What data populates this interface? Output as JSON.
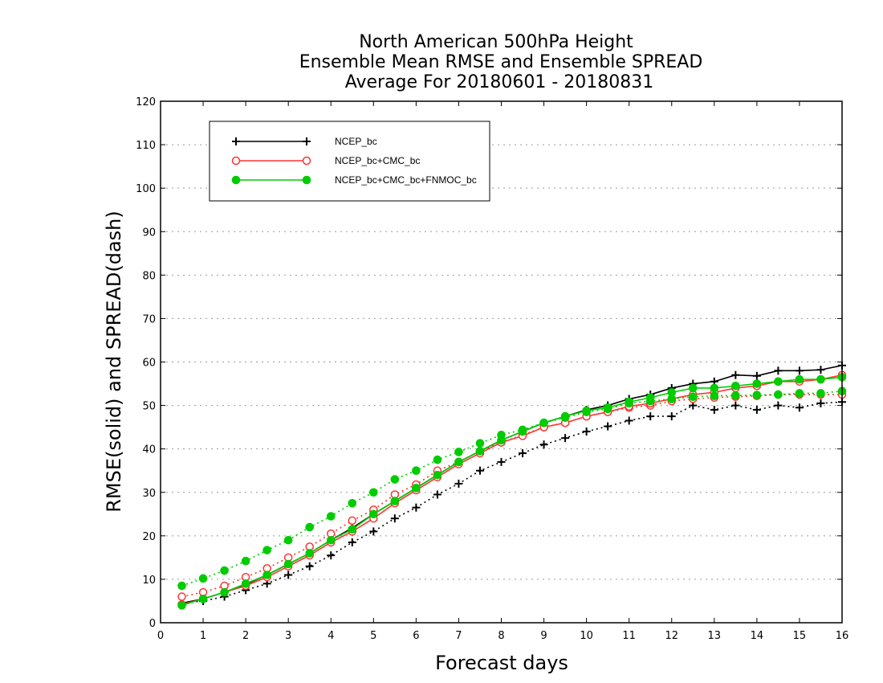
{
  "chart_data": {
    "type": "line",
    "title": [
      "North American 500hPa Height",
      "Ensemble Mean RMSE and Ensemble SPREAD",
      "Average For 20180601 - 20180831"
    ],
    "xlabel": "Forecast days",
    "ylabel": "RMSE(solid) and SPREAD(dash)",
    "xlim": [
      0,
      16
    ],
    "ylim": [
      0,
      120
    ],
    "xticks": [
      "0",
      "1",
      "2",
      "3",
      "4",
      "5",
      "6",
      "7",
      "8",
      "9",
      "10",
      "11",
      "12",
      "13",
      "14",
      "15",
      "16"
    ],
    "yticks": [
      "0",
      "10",
      "20",
      "30",
      "40",
      "50",
      "60",
      "70",
      "80",
      "90",
      "100",
      "110",
      "120"
    ],
    "grid": true,
    "legend_position": "top-left",
    "x": [
      0.5,
      1,
      1.5,
      2,
      2.5,
      3,
      3.5,
      4,
      4.5,
      5,
      5.5,
      6,
      6.5,
      7,
      7.5,
      8,
      8.5,
      9,
      9.5,
      10,
      10.5,
      11,
      11.5,
      12,
      12.5,
      13,
      13.5,
      14,
      14.5,
      15,
      15.5,
      16
    ],
    "series": [
      {
        "name": "NCEP_bc",
        "color": "#000000",
        "marker": "plus",
        "rmse": [
          4.5,
          5.5,
          7.0,
          8.8,
          11.0,
          13.5,
          16.0,
          19.0,
          21.8,
          25.0,
          28.0,
          31.0,
          34.0,
          37.0,
          39.5,
          42.0,
          44.0,
          46.0,
          47.5,
          49.0,
          50.0,
          51.5,
          52.5,
          54.0,
          55.0,
          55.5,
          57.0,
          56.8,
          58.0,
          58.0,
          58.2,
          59.2
        ],
        "spread": [
          4.5,
          5.0,
          6.0,
          7.5,
          9.0,
          11.0,
          13.0,
          15.5,
          18.5,
          21.0,
          24.0,
          26.5,
          29.5,
          32.0,
          35.0,
          37.0,
          39.0,
          41.0,
          42.5,
          44.0,
          45.2,
          46.5,
          47.5,
          47.5,
          50.0,
          49.0,
          50.0,
          49.0,
          50.0,
          49.5,
          50.5,
          50.8
        ]
      },
      {
        "name": "NCEP_bc+CMC_bc",
        "color": "#ff3333",
        "marker": "open-circle",
        "rmse": [
          4.2,
          5.5,
          7.0,
          8.5,
          10.5,
          13.0,
          15.5,
          18.5,
          21.0,
          24.0,
          27.5,
          30.5,
          33.5,
          36.5,
          39.0,
          41.5,
          43.0,
          45.0,
          46.0,
          47.5,
          48.5,
          49.8,
          50.5,
          51.5,
          52.5,
          53.0,
          54.0,
          54.5,
          55.5,
          55.5,
          56.0,
          57.0
        ],
        "spread": [
          6.0,
          7.0,
          8.5,
          10.5,
          12.5,
          15.0,
          17.5,
          20.5,
          23.5,
          26.0,
          29.5,
          31.8,
          35.0,
          37.0,
          39.5,
          41.5,
          43.2,
          45.0,
          46.0,
          47.5,
          48.5,
          49.5,
          50.0,
          51.0,
          51.5,
          51.8,
          52.0,
          52.2,
          52.5,
          52.5,
          52.5,
          52.5
        ]
      },
      {
        "name": "NCEP_bc+CMC_bc+FNMOC_bc",
        "color": "#00cc00",
        "marker": "filled-circle",
        "rmse": [
          4.0,
          5.5,
          7.0,
          9.0,
          11.0,
          13.5,
          16.0,
          19.0,
          21.5,
          25.0,
          28.0,
          31.0,
          34.0,
          37.0,
          39.5,
          42.0,
          44.0,
          46.0,
          47.5,
          48.8,
          49.5,
          50.8,
          51.8,
          53.0,
          54.0,
          54.0,
          54.5,
          55.0,
          55.5,
          56.0,
          56.0,
          56.5
        ],
        "spread": [
          8.5,
          10.2,
          12.0,
          14.2,
          16.7,
          19.0,
          22.0,
          24.5,
          27.5,
          30.0,
          33.0,
          35.0,
          37.5,
          39.3,
          41.3,
          43.2,
          44.4,
          46.0,
          47.2,
          48.5,
          49.2,
          50.5,
          51.0,
          51.5,
          52.0,
          52.2,
          52.3,
          52.4,
          52.5,
          52.8,
          52.8,
          53.3
        ]
      }
    ]
  }
}
